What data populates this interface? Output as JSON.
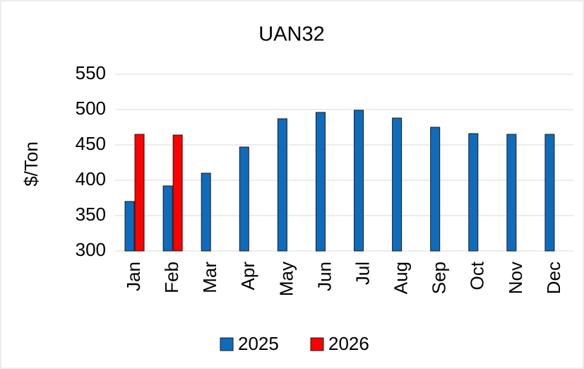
{
  "chart_data": {
    "type": "bar",
    "title": "UAN32",
    "y_label": "$/Ton",
    "categories": [
      "Jan",
      "Feb",
      "Mar",
      "Apr",
      "May",
      "Jun",
      "Jul",
      "Aug",
      "Sep",
      "Oct",
      "Nov",
      "Dec"
    ],
    "series": [
      {
        "name": "2025",
        "color": "#0f6cbd",
        "values": [
          370,
          392,
          410,
          447,
          487,
          496,
          499,
          488,
          475,
          466,
          465,
          465
        ]
      },
      {
        "name": "2026",
        "color": "#ff0000",
        "values": [
          465,
          464,
          null,
          null,
          null,
          null,
          null,
          null,
          null,
          null,
          null,
          null
        ]
      }
    ],
    "ylim": [
      300,
      550
    ],
    "yticks": [
      300,
      350,
      400,
      450,
      500,
      550
    ],
    "grid": true,
    "legend": "bottom"
  }
}
